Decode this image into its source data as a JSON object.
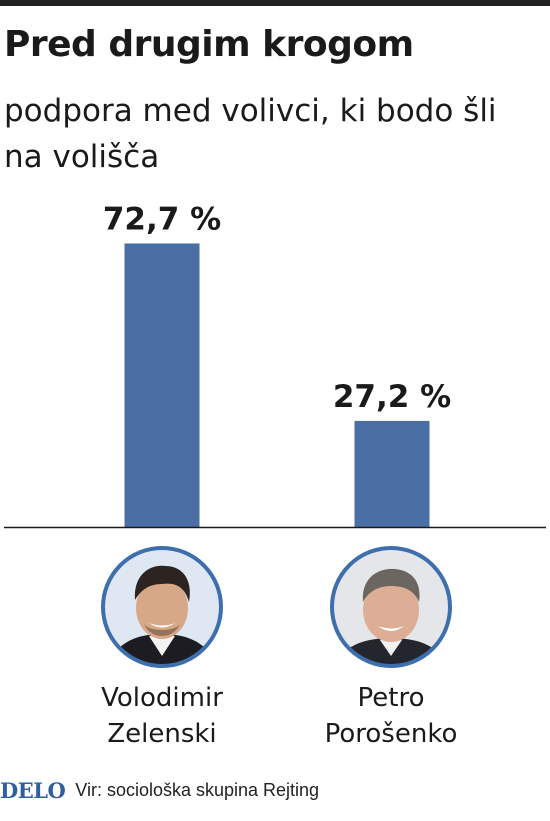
{
  "title": "Pred drugim krogom",
  "subtitle": "podpora med volivci, ki bodo šli na volišča",
  "chart_data": {
    "type": "bar",
    "title": "Pred drugim krogom",
    "subtitle": "podpora med volivci, ki bodo šli na volišča",
    "categories": [
      "Volodimir Zelenski",
      "Petro Porošenko"
    ],
    "values": [
      72.7,
      27.2
    ],
    "value_labels": [
      "72,7 %",
      "27,2 %"
    ],
    "unit": "%",
    "ylim": [
      0,
      100
    ],
    "grid": false,
    "legend": "none",
    "bar_color": "#4a6fa5"
  },
  "candidates": [
    {
      "first_name": "Volodimir",
      "last_name": "Zelenski",
      "photo": "zelenski-portrait-icon"
    },
    {
      "first_name": "Petro",
      "last_name": "Porošenko",
      "photo": "porosenko-portrait-icon"
    }
  ],
  "footer": {
    "logo": "DELO",
    "source": "Vir: sociološka skupina Rejting"
  },
  "colors": {
    "bar": "#4a6fa5",
    "ring": "#3d6fae",
    "logo": "#2f5fa0"
  }
}
